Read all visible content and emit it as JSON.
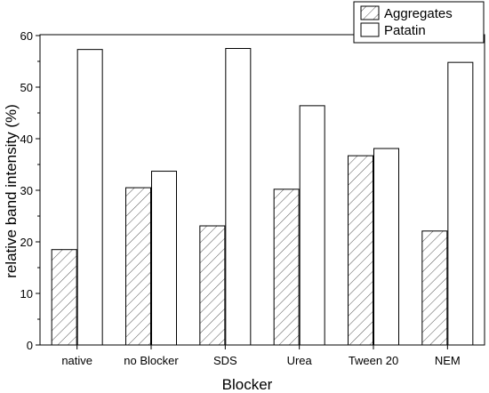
{
  "chart_data": {
    "type": "bar",
    "categories": [
      "native",
      "no Blocker",
      "SDS",
      "Urea",
      "Tween 20",
      "NEM"
    ],
    "series": [
      {
        "name": "Aggregates",
        "values": [
          18.5,
          30.5,
          23.1,
          30.2,
          36.7,
          22.1
        ],
        "fill": "hatched"
      },
      {
        "name": "Patatin",
        "values": [
          57.3,
          33.7,
          57.5,
          46.4,
          38.1,
          54.8
        ],
        "fill": "white"
      }
    ],
    "xlabel": "Blocker",
    "ylabel": "relative band intensity (%)",
    "ylim": [
      0,
      60
    ],
    "yticks": [
      0,
      10,
      20,
      30,
      40,
      50,
      60
    ],
    "grid": false,
    "legend_position": "top-right"
  }
}
